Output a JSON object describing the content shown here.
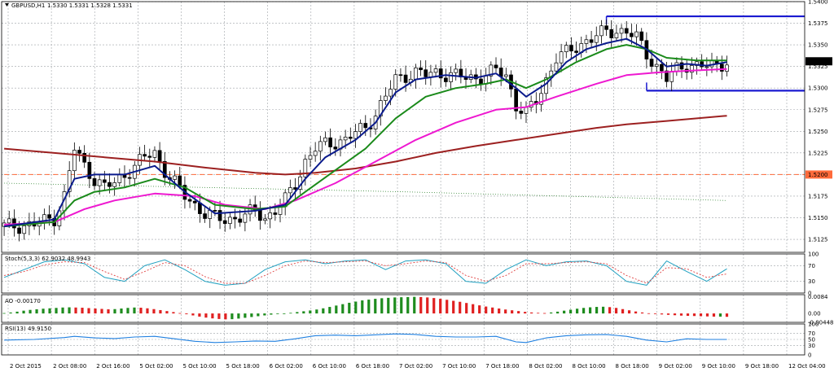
{
  "chart_data": {
    "type": "candlestick",
    "symbol_label": "GBPUSD,H1",
    "ohlc_label": "1.5330 1.5331 1.5328 1.5331",
    "last_price_label": "1.5331",
    "level_label": "1.5200",
    "ylim": [
      1.511,
      1.54
    ],
    "y_ticks": [
      "1.5400",
      "1.5375",
      "1.5350",
      "1.5325",
      "1.5300",
      "1.5275",
      "1.5250",
      "1.5225",
      "1.5200",
      "1.5175",
      "1.5150",
      "1.5125"
    ],
    "x_ticks": [
      "2 Oct 2015",
      "2 Oct 08:00",
      "2 Oct 16:00",
      "5 Oct 02:00",
      "5 Oct 10:00",
      "5 Oct 18:00",
      "6 Oct 02:00",
      "6 Oct 10:00",
      "6 Oct 18:00",
      "7 Oct 02:00",
      "7 Oct 10:00",
      "7 Oct 18:00",
      "8 Oct 02:00",
      "8 Oct 10:00",
      "8 Oct 18:00",
      "9 Oct 02:00",
      "9 Oct 10:00",
      "9 Oct 18:00",
      "12 Oct 04:00"
    ],
    "close_path": [
      [
        0,
        1.514
      ],
      [
        6,
        1.5142
      ],
      [
        10,
        1.515
      ],
      [
        12,
        1.5175
      ],
      [
        14,
        1.523
      ],
      [
        16,
        1.521
      ],
      [
        18,
        1.5195
      ],
      [
        20,
        1.5185
      ],
      [
        22,
        1.519
      ],
      [
        24,
        1.52
      ],
      [
        26,
        1.521
      ],
      [
        28,
        1.522
      ],
      [
        30,
        1.5225
      ],
      [
        32,
        1.5205
      ],
      [
        34,
        1.519
      ],
      [
        36,
        1.5175
      ],
      [
        38,
        1.5165
      ],
      [
        40,
        1.5155
      ],
      [
        42,
        1.515
      ],
      [
        44,
        1.5148
      ],
      [
        46,
        1.515
      ],
      [
        48,
        1.5152
      ],
      [
        50,
        1.5158
      ],
      [
        52,
        1.515
      ],
      [
        54,
        1.5158
      ],
      [
        56,
        1.517
      ],
      [
        58,
        1.519
      ],
      [
        60,
        1.5215
      ],
      [
        62,
        1.523
      ],
      [
        64,
        1.5235
      ],
      [
        66,
        1.5238
      ],
      [
        68,
        1.524
      ],
      [
        70,
        1.5248
      ],
      [
        72,
        1.5255
      ],
      [
        74,
        1.527
      ],
      [
        76,
        1.529
      ],
      [
        78,
        1.531
      ],
      [
        80,
        1.5315
      ],
      [
        82,
        1.5318
      ],
      [
        84,
        1.5315
      ],
      [
        86,
        1.5318
      ],
      [
        88,
        1.5316
      ],
      [
        90,
        1.5314
      ],
      [
        92,
        1.5312
      ],
      [
        94,
        1.5312
      ],
      [
        96,
        1.5315
      ],
      [
        98,
        1.532
      ],
      [
        100,
        1.5315
      ],
      [
        102,
        1.528
      ],
      [
        104,
        1.527
      ],
      [
        106,
        1.5285
      ],
      [
        108,
        1.531
      ],
      [
        110,
        1.5335
      ],
      [
        112,
        1.534
      ],
      [
        114,
        1.5348
      ],
      [
        116,
        1.5355
      ],
      [
        118,
        1.536
      ],
      [
        120,
        1.5365
      ],
      [
        122,
        1.5367
      ],
      [
        124,
        1.5365
      ],
      [
        126,
        1.5358
      ],
      [
        128,
        1.534
      ],
      [
        130,
        1.5325
      ],
      [
        132,
        1.531
      ],
      [
        134,
        1.5322
      ],
      [
        136,
        1.5328
      ],
      [
        138,
        1.5325
      ],
      [
        140,
        1.5325
      ],
      [
        142,
        1.5327
      ],
      [
        144,
        1.5331
      ]
    ],
    "ma_blue_fast": [
      [
        0,
        1.514
      ],
      [
        10,
        1.5148
      ],
      [
        14,
        1.5195
      ],
      [
        18,
        1.52
      ],
      [
        24,
        1.52
      ],
      [
        30,
        1.521
      ],
      [
        36,
        1.518
      ],
      [
        42,
        1.5155
      ],
      [
        50,
        1.5158
      ],
      [
        56,
        1.5165
      ],
      [
        60,
        1.5195
      ],
      [
        64,
        1.522
      ],
      [
        70,
        1.524
      ],
      [
        74,
        1.526
      ],
      [
        78,
        1.5295
      ],
      [
        82,
        1.531
      ],
      [
        88,
        1.5315
      ],
      [
        94,
        1.5312
      ],
      [
        98,
        1.5317
      ],
      [
        102,
        1.53
      ],
      [
        104,
        1.529
      ],
      [
        108,
        1.5305
      ],
      [
        112,
        1.533
      ],
      [
        116,
        1.5345
      ],
      [
        120,
        1.5352
      ],
      [
        124,
        1.5357
      ],
      [
        128,
        1.5345
      ],
      [
        132,
        1.5325
      ],
      [
        136,
        1.5328
      ],
      [
        140,
        1.5326
      ],
      [
        144,
        1.533
      ]
    ],
    "ma_green": [
      [
        0,
        1.514
      ],
      [
        10,
        1.5145
      ],
      [
        14,
        1.517
      ],
      [
        18,
        1.518
      ],
      [
        24,
        1.5185
      ],
      [
        30,
        1.5195
      ],
      [
        36,
        1.5185
      ],
      [
        42,
        1.5165
      ],
      [
        50,
        1.516
      ],
      [
        56,
        1.5163
      ],
      [
        60,
        1.518
      ],
      [
        66,
        1.5205
      ],
      [
        72,
        1.523
      ],
      [
        78,
        1.5265
      ],
      [
        84,
        1.529
      ],
      [
        90,
        1.53
      ],
      [
        96,
        1.5305
      ],
      [
        100,
        1.531
      ],
      [
        104,
        1.53
      ],
      [
        108,
        1.531
      ],
      [
        114,
        1.533
      ],
      [
        120,
        1.5345
      ],
      [
        124,
        1.535
      ],
      [
        128,
        1.5345
      ],
      [
        132,
        1.5335
      ],
      [
        138,
        1.5332
      ],
      [
        144,
        1.5332
      ]
    ],
    "ma_magenta": [
      [
        0,
        1.5142
      ],
      [
        10,
        1.5145
      ],
      [
        16,
        1.516
      ],
      [
        22,
        1.517
      ],
      [
        30,
        1.5178
      ],
      [
        38,
        1.5175
      ],
      [
        44,
        1.5165
      ],
      [
        52,
        1.516
      ],
      [
        58,
        1.517
      ],
      [
        66,
        1.519
      ],
      [
        74,
        1.5215
      ],
      [
        82,
        1.524
      ],
      [
        90,
        1.526
      ],
      [
        98,
        1.5275
      ],
      [
        104,
        1.5278
      ],
      [
        110,
        1.529
      ],
      [
        118,
        1.5305
      ],
      [
        124,
        1.5315
      ],
      [
        130,
        1.5318
      ],
      [
        136,
        1.532
      ],
      [
        144,
        1.5322
      ]
    ],
    "ma_brown": [
      [
        0,
        1.523
      ],
      [
        10,
        1.5225
      ],
      [
        20,
        1.522
      ],
      [
        30,
        1.5215
      ],
      [
        40,
        1.5208
      ],
      [
        50,
        1.5202
      ],
      [
        56,
        1.52
      ],
      [
        62,
        1.5202
      ],
      [
        70,
        1.5207
      ],
      [
        78,
        1.5215
      ],
      [
        86,
        1.5225
      ],
      [
        94,
        1.5233
      ],
      [
        102,
        1.524
      ],
      [
        110,
        1.5247
      ],
      [
        118,
        1.5254
      ],
      [
        124,
        1.5258
      ],
      [
        132,
        1.5262
      ],
      [
        144,
        1.5268
      ]
    ],
    "dotted_green_line": [
      [
        0,
        1.519
      ],
      [
        40,
        1.5185
      ],
      [
        80,
        1.518
      ],
      [
        144,
        1.517
      ]
    ],
    "horizontal_levels": [
      {
        "name": "resistance",
        "value": 1.5383,
        "from_index": 120,
        "to_index": 160
      },
      {
        "name": "support",
        "value": 1.5297,
        "from_index": 128,
        "to_index": 160
      },
      {
        "name": "dashed-level",
        "value": 1.52,
        "from_index": 0,
        "to_index": 160
      }
    ],
    "stochastic": {
      "label": "Stoch(5,3,3) 62.9032 48.9943",
      "ticks": [
        "100",
        "70",
        "30",
        "0"
      ],
      "main_line": [
        [
          0,
          40
        ],
        [
          4,
          60
        ],
        [
          8,
          80
        ],
        [
          12,
          85
        ],
        [
          16,
          75
        ],
        [
          20,
          40
        ],
        [
          24,
          30
        ],
        [
          28,
          70
        ],
        [
          32,
          85
        ],
        [
          36,
          60
        ],
        [
          40,
          30
        ],
        [
          44,
          20
        ],
        [
          48,
          25
        ],
        [
          52,
          60
        ],
        [
          56,
          80
        ],
        [
          60,
          85
        ],
        [
          64,
          75
        ],
        [
          68,
          82
        ],
        [
          72,
          85
        ],
        [
          76,
          60
        ],
        [
          80,
          82
        ],
        [
          84,
          85
        ],
        [
          88,
          75
        ],
        [
          92,
          30
        ],
        [
          96,
          25
        ],
        [
          100,
          60
        ],
        [
          104,
          85
        ],
        [
          108,
          70
        ],
        [
          112,
          80
        ],
        [
          116,
          82
        ],
        [
          120,
          70
        ],
        [
          124,
          30
        ],
        [
          128,
          20
        ],
        [
          132,
          82
        ],
        [
          136,
          55
        ],
        [
          140,
          30
        ],
        [
          144,
          62
        ]
      ],
      "signal_line": [
        [
          0,
          45
        ],
        [
          4,
          55
        ],
        [
          8,
          72
        ],
        [
          12,
          80
        ],
        [
          16,
          78
        ],
        [
          20,
          55
        ],
        [
          24,
          35
        ],
        [
          28,
          55
        ],
        [
          32,
          78
        ],
        [
          36,
          70
        ],
        [
          40,
          42
        ],
        [
          44,
          25
        ],
        [
          48,
          25
        ],
        [
          52,
          45
        ],
        [
          56,
          70
        ],
        [
          60,
          82
        ],
        [
          64,
          78
        ],
        [
          68,
          80
        ],
        [
          72,
          82
        ],
        [
          76,
          70
        ],
        [
          80,
          75
        ],
        [
          84,
          82
        ],
        [
          88,
          78
        ],
        [
          92,
          45
        ],
        [
          96,
          30
        ],
        [
          100,
          45
        ],
        [
          104,
          75
        ],
        [
          108,
          75
        ],
        [
          112,
          78
        ],
        [
          116,
          80
        ],
        [
          120,
          75
        ],
        [
          124,
          45
        ],
        [
          128,
          25
        ],
        [
          132,
          65
        ],
        [
          136,
          62
        ],
        [
          140,
          40
        ],
        [
          144,
          49
        ]
      ]
    },
    "awesome_oscillator": {
      "label": "AO -0.00170",
      "ticks": [
        "0.0084",
        "0.00",
        "-0.00448"
      ],
      "ymin": -0.0045,
      "ymax": 0.0095,
      "bars": [
        0.0002,
        0.0005,
        0.0009,
        0.0014,
        0.0018,
        0.0021,
        0.0024,
        0.0026,
        0.0028,
        0.003,
        0.0031,
        0.003,
        0.0029,
        0.0027,
        0.0025,
        0.0023,
        0.0021,
        0.0022,
        0.0025,
        0.0028,
        0.003,
        0.0029,
        0.0026,
        0.0022,
        0.0017,
        0.0012,
        0.0007,
        0.0002,
        -0.0004,
        -0.001,
        -0.0016,
        -0.0021,
        -0.0025,
        -0.0028,
        -0.003,
        -0.0029,
        -0.0026,
        -0.0022,
        -0.0018,
        -0.0014,
        -0.001,
        -0.0006,
        -0.0003,
        0.0,
        0.0003,
        0.0007,
        0.0011,
        0.0015,
        0.002,
        0.0026,
        0.0033,
        0.004,
        0.0047,
        0.0054,
        0.006,
        0.0066,
        0.007,
        0.0074,
        0.0077,
        0.0079,
        0.0081,
        0.0082,
        0.0083,
        0.0084,
        0.0083,
        0.0081,
        0.0078,
        0.0074,
        0.0069,
        0.0064,
        0.0059,
        0.0053,
        0.0047,
        0.0041,
        0.0035,
        0.003,
        0.0025,
        0.002,
        0.0016,
        0.0012,
        0.0008,
        0.0005,
        0.0003,
        0.0002,
        0.0005,
        0.0009,
        0.0014,
        0.0019,
        0.0024,
        0.0028,
        0.0031,
        0.0033,
        0.0034,
        0.0032,
        0.0028,
        0.0022,
        0.0016,
        0.001,
        0.0005,
        0.0001,
        -0.0002,
        -0.0005,
        -0.0007,
        -0.0009,
        -0.0011,
        -0.0012,
        -0.0013,
        -0.0014,
        -0.0015,
        -0.0016,
        -0.0016,
        -0.0017
      ]
    },
    "rsi": {
      "label": "RSI(13) 49.9150",
      "ticks": [
        "100",
        "70",
        "50",
        "30",
        "0"
      ],
      "line": [
        [
          0,
          48
        ],
        [
          6,
          50
        ],
        [
          12,
          56
        ],
        [
          14,
          60
        ],
        [
          18,
          55
        ],
        [
          22,
          53
        ],
        [
          26,
          58
        ],
        [
          30,
          60
        ],
        [
          34,
          52
        ],
        [
          38,
          44
        ],
        [
          42,
          40
        ],
        [
          46,
          42
        ],
        [
          50,
          45
        ],
        [
          54,
          44
        ],
        [
          58,
          52
        ],
        [
          62,
          62
        ],
        [
          66,
          64
        ],
        [
          70,
          62
        ],
        [
          74,
          65
        ],
        [
          78,
          68
        ],
        [
          82,
          66
        ],
        [
          86,
          60
        ],
        [
          90,
          58
        ],
        [
          94,
          58
        ],
        [
          98,
          60
        ],
        [
          102,
          42
        ],
        [
          104,
          40
        ],
        [
          108,
          55
        ],
        [
          112,
          62
        ],
        [
          116,
          65
        ],
        [
          120,
          66
        ],
        [
          124,
          60
        ],
        [
          128,
          48
        ],
        [
          132,
          42
        ],
        [
          136,
          52
        ],
        [
          140,
          50
        ],
        [
          144,
          50
        ]
      ]
    },
    "colors": {
      "bull_bar": "#1e8c1e",
      "bear_bar": "#e02020",
      "blue_ma": "#0a1a8c",
      "green_ma": "#1a8a1a",
      "magenta_ma": "#ee18d0",
      "brown_ma": "#9c2020",
      "level_line": "#1a1ad0",
      "dashed_level": "#ff6a3a",
      "stoch_main": "#20a0c0",
      "stoch_signal": "#e04040",
      "rsi_line": "#2080e0"
    }
  }
}
